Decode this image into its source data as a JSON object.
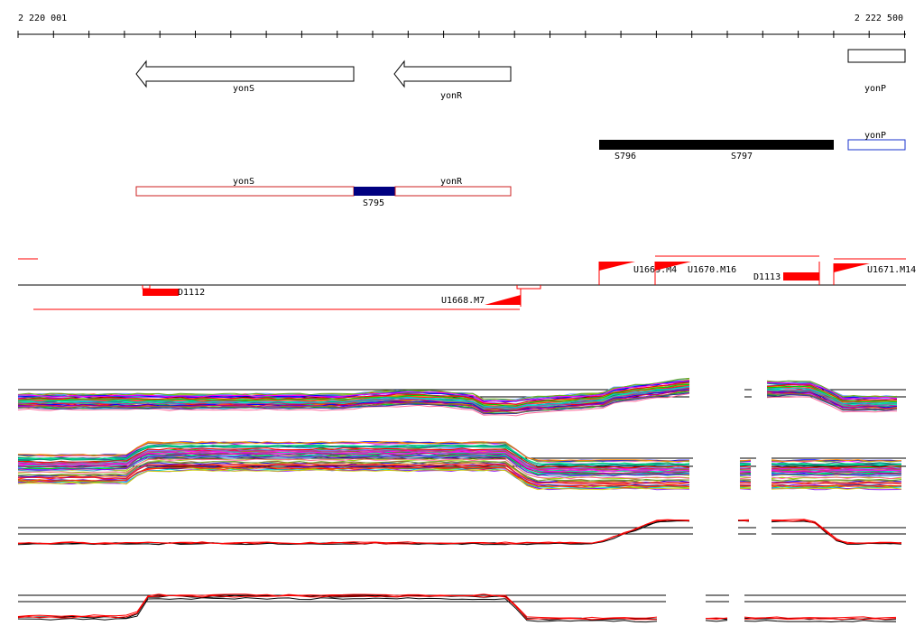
{
  "axis": {
    "start_label": "2 220 001",
    "end_label": "2 222 500",
    "start": 2220001,
    "end": 2222500
  },
  "genes": [
    {
      "name": "yonS",
      "start": 2220336,
      "end": 2220949,
      "strand": "-"
    },
    {
      "name": "yonR",
      "start": 2221071,
      "end": 2221392,
      "strand": "-"
    },
    {
      "name": "yonP",
      "start": 2222335,
      "end": 2222500,
      "strand": "+"
    }
  ],
  "segments": [
    {
      "name": "S796",
      "start": 2221626,
      "end": 2221955,
      "color": "#000000"
    },
    {
      "name": "S797",
      "start": 2221955,
      "end": 2222294,
      "color": "#000000"
    },
    {
      "name": "yonP",
      "start": 2222335,
      "end": 2222500,
      "color": "#ffffff",
      "border": "#1a33cc"
    },
    {
      "name": "yonS",
      "start": 2220336,
      "end": 2220949,
      "color": "#ffffff",
      "border": "#cc2020"
    },
    {
      "name": "S795",
      "start": 2220949,
      "end": 2221071,
      "color": "#000080"
    },
    {
      "name": "yonR",
      "start": 2221071,
      "end": 2221392,
      "color": "#ffffff",
      "border": "#cc2020"
    }
  ],
  "features": [
    {
      "label": "D1112"
    },
    {
      "label": "U1668.M7"
    },
    {
      "label": "U1669.M4"
    },
    {
      "label": "U1670.M16"
    },
    {
      "label": "D1113"
    },
    {
      "label": "U1671.M14"
    }
  ],
  "colors": {
    "feature": "#ff0000",
    "gene_outline": "#000000",
    "axis": "#000000"
  }
}
